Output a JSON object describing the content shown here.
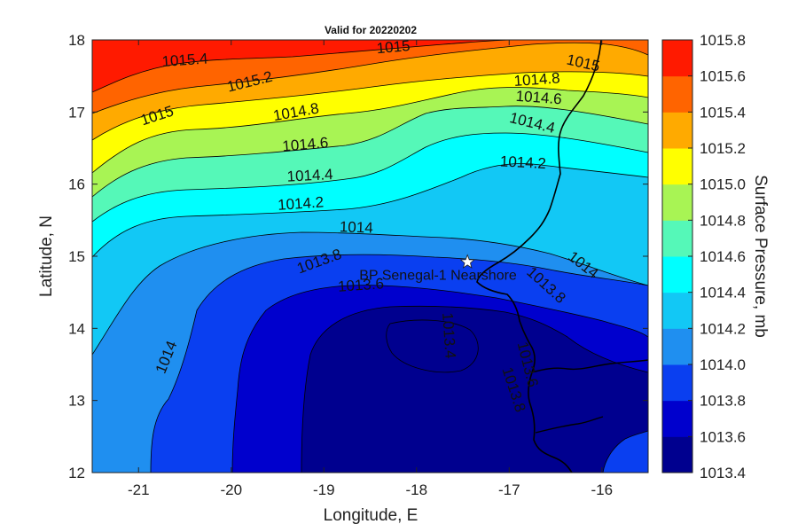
{
  "title": "Valid for 20220202",
  "map": {
    "lon_range": [
      -21.5,
      -15.5
    ],
    "lat_range": [
      12,
      18
    ],
    "x_ticks": [
      "-21",
      "-20",
      "-19",
      "-18",
      "-17",
      "-16"
    ],
    "x_tick_values": [
      -21,
      -20,
      -19,
      -18,
      -17,
      -16
    ],
    "y_ticks": [
      "12",
      "13",
      "14",
      "15",
      "16",
      "17",
      "18"
    ],
    "y_tick_values": [
      12,
      13,
      14,
      15,
      16,
      17,
      18
    ],
    "xlabel": "Longitude, E",
    "ylabel": "Latitude, N"
  },
  "colorbar": {
    "title": "Surface Pressure, mb",
    "levels": [
      "1013.4",
      "1013.6",
      "1013.8",
      "1014.0",
      "1014.2",
      "1014.4",
      "1014.6",
      "1014.8",
      "1015.0",
      "1015.2",
      "1015.4",
      "1015.6",
      "1015.8"
    ],
    "colors": [
      "#00008f",
      "#0000cd",
      "#0a3ff0",
      "#1f8ff0",
      "#12c8f5",
      "#00ffff",
      "#55f8b8",
      "#a8f454",
      "#ffff00",
      "#ffaa00",
      "#ff6400",
      "#ff1a00",
      "#b30000"
    ]
  },
  "contour_labels": [
    {
      "text": "1015.4",
      "lon": -20.5,
      "lat": 17.72,
      "angle": -4
    },
    {
      "text": "1015.2",
      "lon": -19.8,
      "lat": 17.42,
      "angle": -14
    },
    {
      "text": "1015",
      "lon": -20.8,
      "lat": 16.95,
      "angle": -18
    },
    {
      "text": "1015",
      "lon": -18.25,
      "lat": 17.9,
      "angle": -5
    },
    {
      "text": "1015",
      "lon": -16.2,
      "lat": 17.68,
      "angle": 13
    },
    {
      "text": "1014.8",
      "lon": -19.3,
      "lat": 17.0,
      "angle": -10
    },
    {
      "text": "1014.8",
      "lon": -16.7,
      "lat": 17.45,
      "angle": -4
    },
    {
      "text": "1014.6",
      "lon": -19.2,
      "lat": 16.55,
      "angle": -5
    },
    {
      "text": "1014.6",
      "lon": -16.68,
      "lat": 17.2,
      "angle": 4
    },
    {
      "text": "1014.4",
      "lon": -19.15,
      "lat": 16.12,
      "angle": -3
    },
    {
      "text": "1014.4",
      "lon": -16.75,
      "lat": 16.85,
      "angle": 14
    },
    {
      "text": "1014.2",
      "lon": -19.25,
      "lat": 15.73,
      "angle": -4
    },
    {
      "text": "1014.2",
      "lon": -16.85,
      "lat": 16.3,
      "angle": 3
    },
    {
      "text": "1014",
      "lon": -18.65,
      "lat": 15.4,
      "angle": 2
    },
    {
      "text": "1014",
      "lon": -16.2,
      "lat": 14.88,
      "angle": 38
    },
    {
      "text": "1014",
      "lon": -20.7,
      "lat": 13.6,
      "angle": -68
    },
    {
      "text": "1013.8",
      "lon": -19.05,
      "lat": 14.93,
      "angle": -20
    },
    {
      "text": "1013.8",
      "lon": -16.6,
      "lat": 14.6,
      "angle": 42
    },
    {
      "text": "1013.6",
      "lon": -18.6,
      "lat": 14.6,
      "angle": -4
    },
    {
      "text": "1013.4",
      "lon": -17.65,
      "lat": 13.9,
      "angle": 86
    },
    {
      "text": "1013.6",
      "lon": -16.8,
      "lat": 13.5,
      "angle": 76
    },
    {
      "text": "1013.8",
      "lon": -16.95,
      "lat": 13.15,
      "angle": 72
    }
  ],
  "site": {
    "name": "BP Senegal-1 Nearshore",
    "lon": -17.45,
    "lat": 14.92
  }
}
